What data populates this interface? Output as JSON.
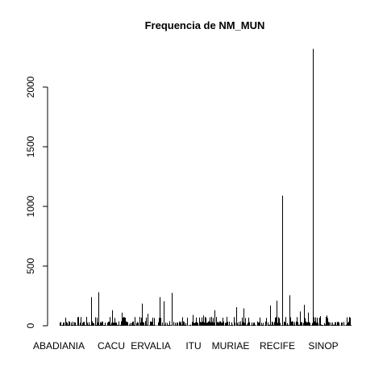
{
  "chart_data": {
    "type": "bar",
    "title": "Frequencia de NM_MUN",
    "xlabel": "",
    "ylabel": "",
    "ylim": [
      0,
      2300
    ],
    "yticks": [
      0,
      500,
      1000,
      1500,
      2000
    ],
    "grid": false,
    "legend": "none",
    "bar_color": "#000000",
    "x_tick_labels": [
      "ABADIANIA",
      "CACU",
      "ERVALIA",
      "ITU",
      "MURIAE",
      "RECIFE",
      "SINOP"
    ],
    "notable_bars": [
      {
        "label": "near CACU (left)",
        "value": 240
      },
      {
        "label": "near CACU (right)",
        "value": 280
      },
      {
        "label": "near ERVALIA",
        "value": 185
      },
      {
        "label": "near ERVALIA (2)",
        "value": 240
      },
      {
        "label": "near ERVALIA (3)",
        "value": 205
      },
      {
        "label": "near ERVALIA (4)",
        "value": 275
      },
      {
        "label": "near RECIFE",
        "value": 170
      },
      {
        "label": "near RECIFE (2)",
        "value": 210
      },
      {
        "label": "near RECIFE (3)",
        "value": 1090
      },
      {
        "label": "near RECIFE (4)",
        "value": 255
      },
      {
        "label": "near RECIFE (5)",
        "value": 175
      },
      {
        "label": "between RECIFE and SINOP",
        "value": 2320
      }
    ],
    "category_count_note": "many municipalities; most bars under 100"
  }
}
